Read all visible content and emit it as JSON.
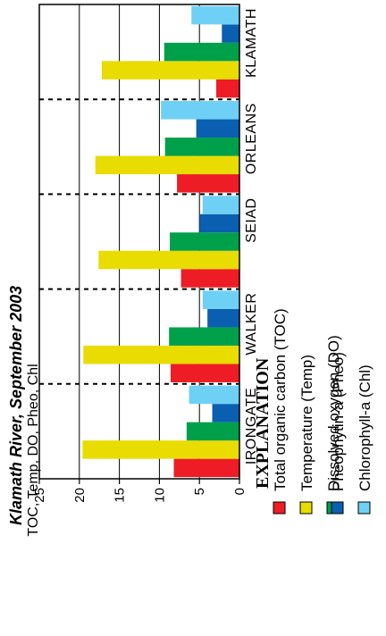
{
  "chart_data": {
    "type": "bar",
    "title": "Klamath River, September 2003",
    "ylabel": "TOC, Temp, DO, Pheo, Chl",
    "ylim": [
      0,
      25
    ],
    "yticks": [
      0,
      5,
      10,
      15,
      20,
      25
    ],
    "grid": true,
    "orientation": "horizontal bars, figure rotated",
    "categories": [
      "IRONGATE",
      "WALKER",
      "SEIAD",
      "ORLEANS",
      "KLAMATH"
    ],
    "series": [
      {
        "name": "Total organic carbon (TOC)",
        "color": "#ee1c25",
        "values": [
          8.2,
          8.6,
          7.3,
          7.8,
          2.9
        ]
      },
      {
        "name": "Temperature (Temp)",
        "color": "#e8dc00",
        "values": [
          19.6,
          19.5,
          17.6,
          18.0,
          17.2
        ]
      },
      {
        "name": "Dissolved oxygen (DO)",
        "color": "#00a04b",
        "values": [
          6.6,
          8.8,
          8.7,
          9.3,
          9.4
        ]
      },
      {
        "name": "Pheophytin-a (Pheo)",
        "color": "#0b5fb0",
        "values": [
          3.4,
          4.0,
          5.0,
          5.4,
          2.2
        ]
      },
      {
        "name": "Chlorophyll-a (Chl)",
        "color": "#6fd0f6",
        "values": [
          6.3,
          4.6,
          4.6,
          9.8,
          6.0
        ]
      }
    ],
    "legend": {
      "title": "EXPLANATION",
      "placement": "bottom",
      "labels_left": [
        "Total organic carbon (TOC)",
        "Temperature (Temp)",
        "Dissolved oxygen (DO)"
      ],
      "labels_right": [
        "Pheophytin-a (Pheo)",
        "Chlorophyll-a (Chl)"
      ]
    }
  }
}
